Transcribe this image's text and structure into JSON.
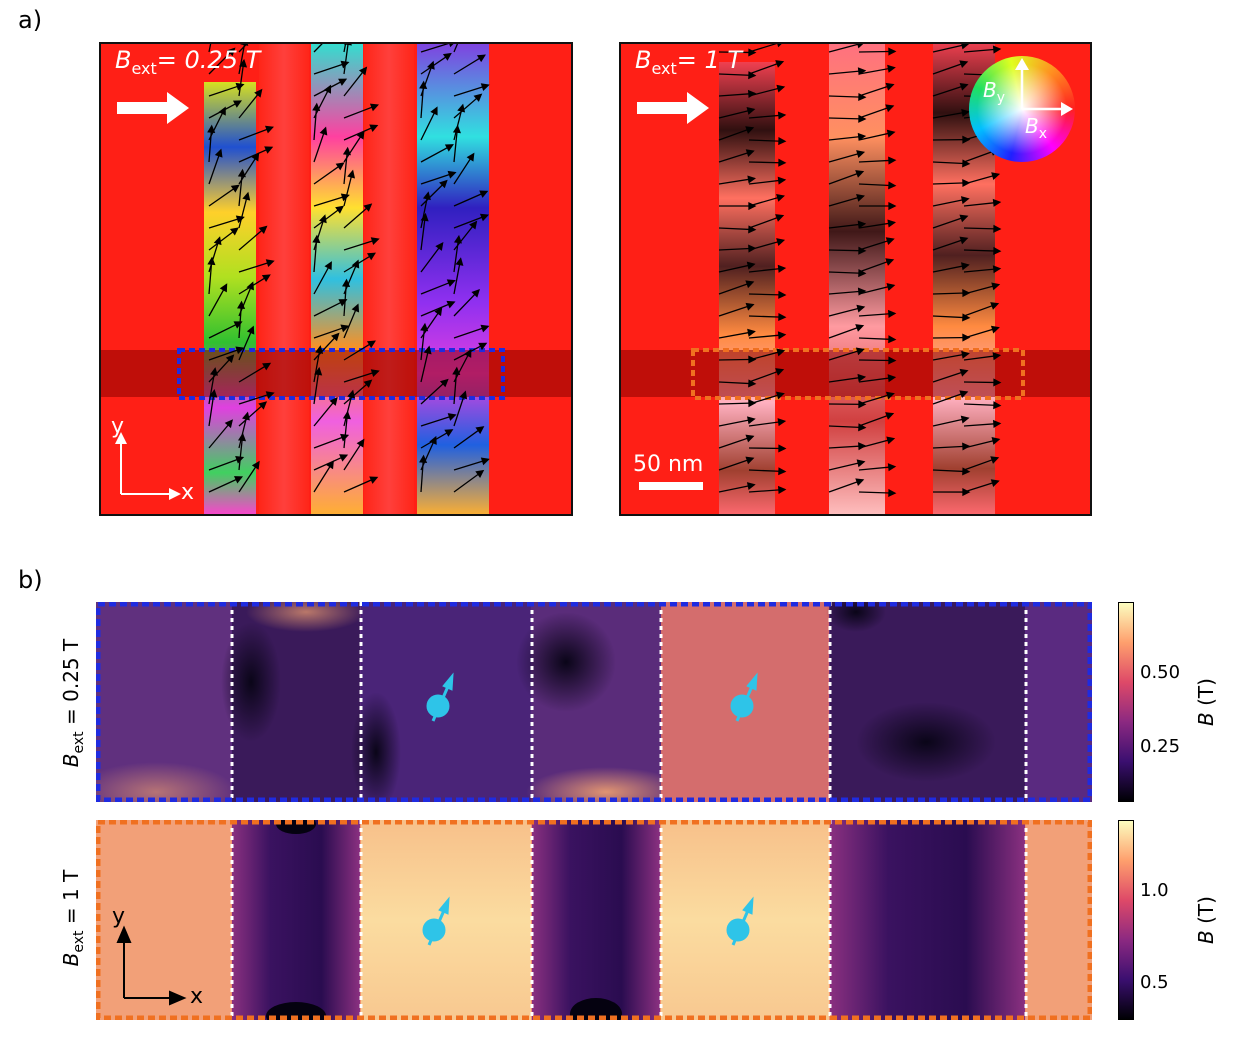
{
  "panel_a": {
    "label": "a)",
    "left_field": {
      "symbol": "B",
      "subscript": "ext",
      "value": "= 0.25 T"
    },
    "right_field": {
      "symbol": "B",
      "subscript": "ext",
      "value": "= 1 T"
    },
    "axes": {
      "y": "y",
      "x": "x"
    },
    "scale_bar": "50 nm",
    "color_wheel": {
      "by_symbol": "B",
      "by_sub": "y",
      "bx_symbol": "B",
      "bx_sub": "x"
    },
    "colors": {
      "background": "#ff1a1a",
      "highlight_band": "#8b0000",
      "box_low_field": "#1f2be0",
      "box_high_field": "#f07020"
    }
  },
  "panel_b": {
    "label": "b)",
    "rows": [
      {
        "label_symbol": "B",
        "label_sub": "ext",
        "label_value": " = 0.25 T",
        "colorbar": {
          "title_symbol": "B",
          "title_unit": " (T)",
          "ticks": [
            "0.50",
            "0.25"
          ]
        }
      },
      {
        "label_symbol": "B",
        "label_sub": "ext",
        "label_value": " = 1 T",
        "colorbar": {
          "title_symbol": "B",
          "title_unit": " (T)",
          "ticks": [
            "1.0",
            "0.5"
          ]
        }
      }
    ],
    "axes": {
      "y": "y",
      "x": "x"
    },
    "colors": {
      "spin_marker": "#2ec4e8",
      "divider": "#ffffff"
    }
  }
}
